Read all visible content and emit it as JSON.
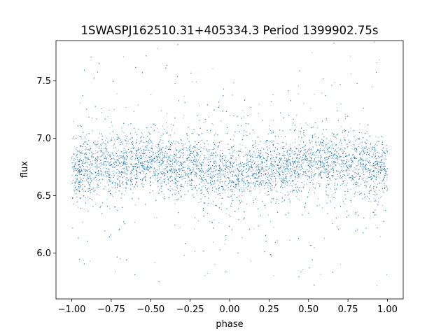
{
  "chart_data": {
    "type": "scatter",
    "title": "1SWASPJ162510.31+405334.3 Period 1399902.75s",
    "xlabel": "phase",
    "ylabel": "flux",
    "xlim": [
      -1.1,
      1.1
    ],
    "ylim": [
      5.6,
      7.85
    ],
    "x_ticks": [
      -1.0,
      -0.75,
      -0.5,
      -0.25,
      0.0,
      0.25,
      0.5,
      0.75,
      1.0
    ],
    "x_tick_labels": [
      "−1.00",
      "−0.75",
      "−0.50",
      "−0.25",
      "0.00",
      "0.25",
      "0.50",
      "0.75",
      "1.00"
    ],
    "y_ticks": [
      6.0,
      6.5,
      7.0,
      7.5
    ],
    "y_tick_labels": [
      "6.0",
      "6.5",
      "7.0",
      "7.5"
    ],
    "grid": false,
    "legend": "none",
    "marker_color": "#1f77b4",
    "series": [
      {
        "x_range": [
          -1.0,
          1.0
        ],
        "core_flux_range": [
          6.45,
          7.05
        ],
        "median_flux_profile": {
          "phase": [
            -1.0,
            -0.75,
            -0.5,
            -0.25,
            0.0,
            0.25,
            0.5,
            0.75,
            1.0
          ],
          "flux": [
            6.72,
            6.78,
            6.8,
            6.75,
            6.68,
            6.74,
            6.79,
            6.78,
            6.72
          ]
        },
        "flux_extremes": [
          5.7,
          7.85
        ]
      }
    ]
  }
}
